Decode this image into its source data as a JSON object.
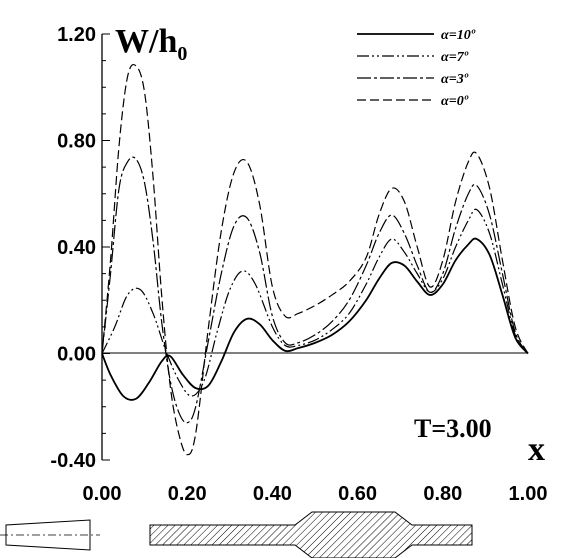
{
  "chart_data": {
    "type": "line",
    "ylabel": "W/h",
    "ylabel_sub": "0",
    "xlabel": "x",
    "annotation": "T=3.00",
    "xlim": [
      0,
      1
    ],
    "ylim": [
      -0.4,
      1.2
    ],
    "x_ticks": [
      "0.00",
      "0.20",
      "0.40",
      "0.60",
      "0.80",
      "1.00"
    ],
    "y_ticks": [
      "-0.40",
      "0.00",
      "0.40",
      "0.80",
      "1.20"
    ],
    "legend_position": "top-right",
    "series": [
      {
        "name": "α=10º",
        "style": "solid",
        "x": [
          0,
          0.02,
          0.05,
          0.08,
          0.11,
          0.14,
          0.16,
          0.19,
          0.22,
          0.25,
          0.28,
          0.31,
          0.34,
          0.37,
          0.4,
          0.43,
          0.46,
          0.5,
          0.54,
          0.58,
          0.62,
          0.65,
          0.68,
          0.71,
          0.74,
          0.77,
          0.8,
          0.83,
          0.86,
          0.88,
          0.91,
          0.94,
          0.97,
          1.0
        ],
        "y": [
          0,
          -0.08,
          -0.16,
          -0.17,
          -0.11,
          -0.03,
          -0.01,
          -0.08,
          -0.13,
          -0.12,
          -0.03,
          0.08,
          0.13,
          0.11,
          0.05,
          0.01,
          0.02,
          0.04,
          0.07,
          0.12,
          0.2,
          0.28,
          0.34,
          0.33,
          0.27,
          0.22,
          0.26,
          0.35,
          0.41,
          0.43,
          0.37,
          0.22,
          0.06,
          0
        ]
      },
      {
        "name": "α=7º",
        "style": "dashdotdot",
        "x": [
          0,
          0.03,
          0.06,
          0.09,
          0.12,
          0.15,
          0.18,
          0.21,
          0.24,
          0.27,
          0.3,
          0.33,
          0.36,
          0.4,
          0.43,
          0.46,
          0.5,
          0.54,
          0.58,
          0.62,
          0.65,
          0.68,
          0.71,
          0.74,
          0.77,
          0.8,
          0.83,
          0.86,
          0.88,
          0.91,
          0.94,
          0.97,
          1.0
        ],
        "y": [
          0,
          0.1,
          0.22,
          0.24,
          0.15,
          0.01,
          -0.1,
          -0.16,
          -0.1,
          0.08,
          0.24,
          0.31,
          0.26,
          0.1,
          0.03,
          0.03,
          0.05,
          0.09,
          0.15,
          0.26,
          0.36,
          0.43,
          0.38,
          0.3,
          0.23,
          0.28,
          0.4,
          0.5,
          0.54,
          0.45,
          0.26,
          0.07,
          0
        ]
      },
      {
        "name": "α=3º",
        "style": "dashdot",
        "x": [
          0,
          0.02,
          0.04,
          0.06,
          0.08,
          0.1,
          0.12,
          0.14,
          0.16,
          0.18,
          0.2,
          0.22,
          0.25,
          0.28,
          0.31,
          0.34,
          0.37,
          0.4,
          0.43,
          0.46,
          0.5,
          0.54,
          0.58,
          0.62,
          0.65,
          0.68,
          0.71,
          0.74,
          0.77,
          0.8,
          0.83,
          0.86,
          0.88,
          0.91,
          0.94,
          0.97,
          1.0
        ],
        "y": [
          0,
          0.3,
          0.62,
          0.72,
          0.73,
          0.64,
          0.42,
          0.12,
          -0.1,
          -0.22,
          -0.26,
          -0.2,
          0.05,
          0.3,
          0.48,
          0.51,
          0.38,
          0.14,
          0.04,
          0.04,
          0.07,
          0.12,
          0.2,
          0.33,
          0.45,
          0.52,
          0.45,
          0.33,
          0.23,
          0.3,
          0.47,
          0.6,
          0.63,
          0.52,
          0.3,
          0.08,
          0
        ]
      },
      {
        "name": "α=0º",
        "style": "dashed",
        "x": [
          0,
          0.02,
          0.04,
          0.06,
          0.08,
          0.1,
          0.12,
          0.14,
          0.16,
          0.18,
          0.2,
          0.22,
          0.25,
          0.28,
          0.31,
          0.34,
          0.37,
          0.4,
          0.43,
          0.46,
          0.5,
          0.54,
          0.58,
          0.62,
          0.65,
          0.68,
          0.71,
          0.74,
          0.77,
          0.8,
          0.83,
          0.86,
          0.88,
          0.91,
          0.94,
          0.97,
          1.0
        ],
        "y": [
          0,
          0.35,
          0.78,
          1.04,
          1.08,
          0.98,
          0.66,
          0.22,
          -0.12,
          -0.3,
          -0.38,
          -0.3,
          0.1,
          0.46,
          0.68,
          0.72,
          0.56,
          0.25,
          0.14,
          0.15,
          0.18,
          0.22,
          0.27,
          0.36,
          0.52,
          0.62,
          0.57,
          0.4,
          0.25,
          0.35,
          0.57,
          0.72,
          0.75,
          0.62,
          0.35,
          0.1,
          0
        ]
      }
    ]
  }
}
